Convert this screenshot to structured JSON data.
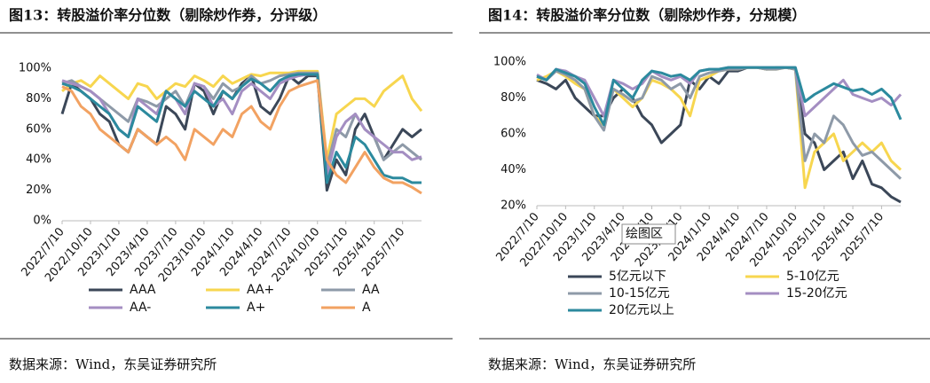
{
  "chart_data": [
    {
      "type": "line",
      "title": "图13：转股溢价率分位数（剔除炒作券，分评级）",
      "source": "数据来源：Wind，东吴证券研究所",
      "categories": [
        "2022/7/10",
        null,
        null,
        "2022/10/10",
        null,
        null,
        "2023/1/10",
        null,
        null,
        "2023/4/10",
        null,
        null,
        "2023/7/10",
        null,
        null,
        "2023/10/10",
        null,
        null,
        "2024/1/10",
        null,
        null,
        "2024/4/10",
        null,
        null,
        "2024/7/10",
        null,
        null,
        "2024/10/10",
        null,
        null,
        "2025/1/10",
        null,
        null,
        "2025/4/10",
        null,
        null,
        "2025/7/10",
        null,
        null
      ],
      "ylim": [
        0,
        100
      ],
      "yticks": [
        {
          "value": 0,
          "label": "0%"
        },
        {
          "value": 20,
          "label": "20%"
        },
        {
          "value": 40,
          "label": "40%"
        },
        {
          "value": 60,
          "label": "60%"
        },
        {
          "value": 80,
          "label": "80%"
        },
        {
          "value": 100,
          "label": "100%"
        }
      ],
      "series": [
        {
          "name": "AAA",
          "color": "#3b4758",
          "values": [
            70,
            90,
            85,
            80,
            70,
            65,
            50,
            45,
            60,
            55,
            50,
            75,
            70,
            60,
            90,
            85,
            70,
            85,
            80,
            90,
            95,
            75,
            70,
            80,
            95,
            90,
            95,
            95,
            20,
            40,
            30,
            60,
            70,
            55,
            40,
            50,
            60,
            55,
            60
          ]
        },
        {
          "name": "AA+",
          "color": "#f7d64f",
          "values": [
            85,
            90,
            92,
            88,
            95,
            90,
            85,
            80,
            90,
            88,
            80,
            85,
            90,
            88,
            95,
            92,
            88,
            95,
            90,
            93,
            96,
            95,
            97,
            97,
            97,
            98,
            98,
            98,
            40,
            70,
            75,
            80,
            80,
            75,
            85,
            90,
            95,
            80,
            72
          ]
        },
        {
          "name": "AA",
          "color": "#8e9aa8",
          "values": [
            90,
            92,
            88,
            85,
            80,
            75,
            70,
            65,
            80,
            78,
            75,
            80,
            85,
            75,
            90,
            88,
            80,
            90,
            85,
            88,
            95,
            90,
            92,
            95,
            96,
            97,
            97,
            97,
            35,
            60,
            55,
            70,
            60,
            55,
            40,
            45,
            50,
            45,
            40
          ]
        },
        {
          "name": "AA-",
          "color": "#a48ec2",
          "values": [
            92,
            90,
            88,
            85,
            80,
            70,
            60,
            55,
            80,
            75,
            70,
            85,
            80,
            70,
            90,
            88,
            75,
            80,
            70,
            85,
            90,
            85,
            80,
            90,
            93,
            95,
            96,
            96,
            30,
            55,
            65,
            70,
            60,
            55,
            50,
            45,
            45,
            40,
            42
          ]
        },
        {
          "name": "A+",
          "color": "#2c8a9e",
          "values": [
            90,
            88,
            85,
            80,
            75,
            70,
            60,
            55,
            75,
            70,
            65,
            85,
            80,
            75,
            85,
            80,
            75,
            85,
            80,
            88,
            93,
            90,
            85,
            92,
            95,
            96,
            96,
            96,
            25,
            45,
            35,
            55,
            50,
            40,
            30,
            28,
            28,
            25,
            25
          ]
        },
        {
          "name": "A",
          "color": "#f2a262",
          "values": [
            88,
            85,
            75,
            70,
            60,
            55,
            50,
            45,
            60,
            55,
            50,
            55,
            50,
            40,
            60,
            55,
            50,
            60,
            55,
            70,
            75,
            65,
            60,
            75,
            85,
            88,
            90,
            92,
            40,
            30,
            25,
            35,
            45,
            35,
            28,
            25,
            25,
            22,
            18
          ]
        }
      ]
    },
    {
      "type": "line",
      "title": "图14：转股溢价率分位数（剔除炒作券，分规模）",
      "source": "数据来源：Wind，东吴证券研究所",
      "annotation": "绘图区",
      "categories": [
        "2022/7/10",
        null,
        null,
        "2022/10/10",
        null,
        null,
        "2023/1/10",
        null,
        null,
        "2023/4/10",
        null,
        null,
        "2023/7/10",
        null,
        null,
        "2023/10/10",
        null,
        null,
        "2024/1/10",
        null,
        null,
        "2024/4/10",
        null,
        null,
        "2024/7/10",
        null,
        null,
        "2024/10/10",
        null,
        null,
        "2025/1/10",
        null,
        null,
        "2025/4/10",
        null,
        null,
        "2025/7/10",
        null,
        null
      ],
      "ylim": [
        20,
        100
      ],
      "yticks": [
        {
          "value": 20,
          "label": "20%"
        },
        {
          "value": 40,
          "label": "40%"
        },
        {
          "value": 60,
          "label": "60%"
        },
        {
          "value": 80,
          "label": "80%"
        },
        {
          "value": 100,
          "label": "100%"
        }
      ],
      "series": [
        {
          "name": "5亿元以下",
          "color": "#3b4758",
          "values": [
            90,
            88,
            85,
            90,
            80,
            75,
            70,
            70,
            80,
            85,
            80,
            70,
            65,
            55,
            60,
            65,
            90,
            85,
            92,
            88,
            95,
            95,
            97,
            97,
            96,
            97,
            97,
            96,
            60,
            55,
            40,
            45,
            50,
            35,
            45,
            32,
            30,
            25,
            22
          ]
        },
        {
          "name": "5-10亿元",
          "color": "#f7d64f",
          "values": [
            90,
            92,
            95,
            92,
            88,
            85,
            70,
            65,
            85,
            80,
            75,
            80,
            90,
            88,
            85,
            80,
            70,
            90,
            92,
            95,
            96,
            96,
            97,
            97,
            96,
            96,
            97,
            96,
            30,
            50,
            55,
            60,
            45,
            50,
            55,
            50,
            55,
            45,
            40
          ]
        },
        {
          "name": "10-15亿元",
          "color": "#8e9aa8",
          "values": [
            92,
            90,
            95,
            93,
            90,
            85,
            70,
            62,
            85,
            82,
            78,
            80,
            92,
            90,
            85,
            88,
            80,
            92,
            94,
            95,
            96,
            96,
            97,
            97,
            96,
            96,
            97,
            96,
            45,
            60,
            55,
            70,
            65,
            55,
            48,
            50,
            45,
            40,
            35
          ]
        },
        {
          "name": "15-20亿元",
          "color": "#a48ec2",
          "values": [
            93,
            90,
            96,
            95,
            92,
            90,
            80,
            70,
            90,
            88,
            85,
            88,
            95,
            92,
            90,
            92,
            88,
            95,
            96,
            96,
            97,
            97,
            97,
            97,
            97,
            97,
            97,
            97,
            70,
            75,
            80,
            85,
            90,
            82,
            80,
            78,
            80,
            76,
            82
          ]
        },
        {
          "name": "20亿元以上",
          "color": "#2c8a9e",
          "values": [
            92,
            90,
            96,
            94,
            92,
            88,
            75,
            65,
            90,
            85,
            80,
            90,
            95,
            94,
            92,
            93,
            90,
            95,
            96,
            96,
            97,
            97,
            97,
            97,
            97,
            97,
            97,
            97,
            78,
            82,
            85,
            88,
            86,
            84,
            85,
            82,
            85,
            80,
            68
          ]
        }
      ]
    }
  ]
}
